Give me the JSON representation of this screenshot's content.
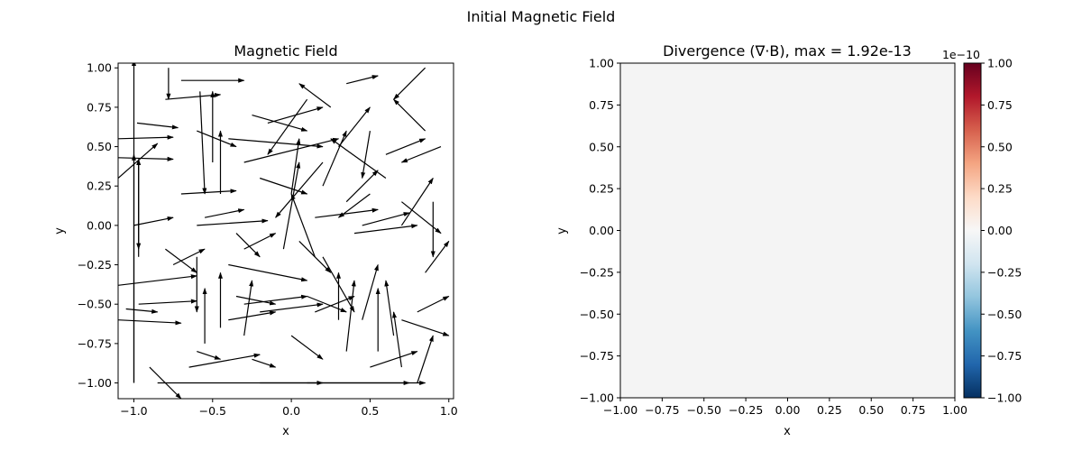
{
  "figure": {
    "suptitle": "Initial Magnetic Field"
  },
  "chart_data": [
    {
      "type": "quiver",
      "title": "Magnetic Field",
      "xlabel": "x",
      "ylabel": "y",
      "xlim": [
        -1.1,
        1.03
      ],
      "ylim": [
        -1.1,
        1.03
      ],
      "xticks": [
        "−1.0",
        "−0.5",
        "0.0",
        "0.5",
        "1.0"
      ],
      "yticks": [
        "−1.00",
        "−0.75",
        "−0.50",
        "−0.25",
        "0.00",
        "0.25",
        "0.50",
        "0.75",
        "1.00"
      ],
      "arrow_color": "#000000",
      "vectors": [
        [
          -1.0,
          -1.0,
          -1.0,
          1.05
        ],
        [
          -1.0,
          -1.0,
          -1.0,
          0.45
        ],
        [
          -0.97,
          0.4,
          -0.97,
          -0.15
        ],
        [
          -0.97,
          -0.2,
          -0.97,
          0.42
        ],
        [
          -0.98,
          0.65,
          -0.72,
          0.62
        ],
        [
          -1.1,
          0.55,
          -0.75,
          0.56
        ],
        [
          -1.1,
          0.43,
          -0.75,
          0.42
        ],
        [
          -1.1,
          0.3,
          -0.85,
          0.52
        ],
        [
          -0.97,
          -0.5,
          -0.6,
          -0.48
        ],
        [
          -1.1,
          -0.38,
          -0.6,
          -0.32
        ],
        [
          -1.1,
          -0.6,
          -0.7,
          -0.62
        ],
        [
          -1.05,
          -0.53,
          -0.85,
          -0.55
        ],
        [
          -0.85,
          -1.0,
          0.2,
          -1.0
        ],
        [
          -0.2,
          -1.0,
          0.85,
          -1.0
        ],
        [
          0.1,
          -1.0,
          0.75,
          -1.0
        ],
        [
          -0.6,
          -0.8,
          -0.45,
          -0.85
        ],
        [
          -0.65,
          -0.9,
          -0.2,
          -0.82
        ],
        [
          -0.25,
          -0.85,
          -0.1,
          -0.9
        ],
        [
          -0.8,
          0.8,
          -0.45,
          0.83
        ],
        [
          -0.7,
          0.92,
          -0.3,
          0.92
        ],
        [
          -0.78,
          1.0,
          -0.78,
          0.8
        ],
        [
          -0.5,
          0.4,
          -0.5,
          0.85
        ],
        [
          -0.45,
          0.2,
          -0.45,
          0.6
        ],
        [
          -0.58,
          0.85,
          -0.55,
          0.2
        ],
        [
          -0.7,
          0.2,
          -0.35,
          0.22
        ],
        [
          -0.6,
          0.0,
          -0.15,
          0.03
        ],
        [
          -0.55,
          0.05,
          -0.3,
          0.1
        ],
        [
          -0.4,
          0.55,
          0.2,
          0.5
        ],
        [
          -0.25,
          0.7,
          0.1,
          0.6
        ],
        [
          -0.3,
          0.4,
          0.3,
          0.55
        ],
        [
          -0.2,
          0.3,
          0.1,
          0.2
        ],
        [
          0.0,
          0.2,
          0.05,
          0.55
        ],
        [
          0.1,
          0.8,
          -0.15,
          0.45
        ],
        [
          0.3,
          0.5,
          0.5,
          0.75
        ],
        [
          0.35,
          0.15,
          0.55,
          0.35
        ],
        [
          0.6,
          0.3,
          0.25,
          0.55
        ],
        [
          0.2,
          0.4,
          -0.1,
          0.05
        ],
        [
          0.15,
          -0.2,
          0.0,
          0.2
        ],
        [
          -0.05,
          -0.15,
          0.05,
          0.4
        ],
        [
          0.45,
          0.0,
          0.75,
          0.08
        ],
        [
          0.4,
          -0.05,
          0.8,
          0.0
        ],
        [
          0.15,
          0.05,
          0.55,
          0.1
        ],
        [
          0.7,
          0.0,
          0.9,
          0.3
        ],
        [
          0.7,
          0.15,
          0.95,
          -0.05
        ],
        [
          0.5,
          0.2,
          0.3,
          0.05
        ],
        [
          0.85,
          0.6,
          0.65,
          0.8
        ],
        [
          0.85,
          1.0,
          0.65,
          0.8
        ],
        [
          0.6,
          0.45,
          0.85,
          0.55
        ],
        [
          -0.4,
          -0.25,
          0.1,
          -0.35
        ],
        [
          -0.3,
          -0.5,
          0.1,
          -0.45
        ],
        [
          -0.4,
          -0.6,
          -0.1,
          -0.55
        ],
        [
          -0.2,
          -0.55,
          0.2,
          -0.5
        ],
        [
          -0.35,
          -0.45,
          -0.1,
          -0.5
        ],
        [
          -0.45,
          -0.65,
          -0.45,
          -0.3
        ],
        [
          -0.3,
          -0.7,
          -0.25,
          -0.35
        ],
        [
          -0.55,
          -0.75,
          -0.55,
          -0.4
        ],
        [
          -0.6,
          -0.2,
          -0.6,
          -0.55
        ],
        [
          0.3,
          -0.6,
          0.3,
          -0.3
        ],
        [
          0.35,
          -0.8,
          0.4,
          -0.35
        ],
        [
          0.45,
          -0.6,
          0.55,
          -0.25
        ],
        [
          0.55,
          -0.8,
          0.55,
          -0.4
        ],
        [
          0.65,
          -0.7,
          0.6,
          -0.35
        ],
        [
          0.7,
          -0.9,
          0.65,
          -0.55
        ],
        [
          0.15,
          -0.55,
          0.4,
          -0.45
        ],
        [
          0.2,
          -0.2,
          0.4,
          -0.55
        ],
        [
          0.0,
          -0.7,
          0.2,
          -0.85
        ],
        [
          0.5,
          -0.9,
          0.8,
          -0.8
        ],
        [
          0.8,
          -1.0,
          0.9,
          -0.7
        ],
        [
          0.8,
          -0.55,
          1.0,
          -0.45
        ],
        [
          0.85,
          -0.3,
          1.0,
          -0.1
        ],
        [
          0.7,
          -0.6,
          1.0,
          -0.7
        ],
        [
          -0.8,
          -0.15,
          -0.6,
          -0.3
        ],
        [
          -0.75,
          -0.25,
          -0.55,
          -0.15
        ],
        [
          -0.35,
          -0.05,
          -0.2,
          -0.2
        ],
        [
          -0.3,
          -0.15,
          -0.1,
          -0.05
        ],
        [
          0.05,
          -0.1,
          0.25,
          -0.3
        ],
        [
          0.1,
          -0.45,
          0.35,
          -0.55
        ],
        [
          -1.0,
          0.0,
          -0.75,
          0.05
        ],
        [
          -0.6,
          0.6,
          -0.35,
          0.5
        ],
        [
          -0.15,
          0.65,
          0.2,
          0.75
        ],
        [
          0.35,
          0.9,
          0.55,
          0.95
        ],
        [
          0.25,
          0.75,
          0.05,
          0.9
        ],
        [
          0.9,
          0.15,
          0.9,
          -0.2
        ],
        [
          0.95,
          0.5,
          0.7,
          0.4
        ],
        [
          0.2,
          0.25,
          0.35,
          0.6
        ],
        [
          0.5,
          0.6,
          0.45,
          0.3
        ],
        [
          -0.9,
          -0.9,
          -0.7,
          -1.1
        ]
      ]
    },
    {
      "type": "heatmap",
      "title": "Divergence (∇·B), max = 1.92e-13",
      "xlabel": "x",
      "ylabel": "y",
      "xlim": [
        -1.0,
        1.0
      ],
      "ylim": [
        -1.0,
        1.0
      ],
      "xticks": [
        "−1.00",
        "−0.75",
        "−0.50",
        "−0.25",
        "0.00",
        "0.25",
        "0.50",
        "0.75",
        "1.00"
      ],
      "yticks": [
        "−1.00",
        "−0.75",
        "−0.50",
        "−0.25",
        "0.00",
        "0.25",
        "0.50",
        "0.75",
        "1.00"
      ],
      "fill_value": 0.0,
      "fill_color": "#f4f4f4",
      "colorbar": {
        "ticks": [
          "−1.00",
          "−0.75",
          "−0.50",
          "−0.25",
          "0.00",
          "0.25",
          "0.50",
          "0.75",
          "1.00"
        ],
        "multiplier": "1e−10",
        "range": [
          -1.0,
          1.0
        ],
        "colors": [
          "#053061",
          "#2166ac",
          "#4393c3",
          "#92c5de",
          "#d1e5f0",
          "#f7f7f7",
          "#fddbc7",
          "#f4a582",
          "#d6604d",
          "#b2182b",
          "#67001f"
        ]
      }
    }
  ]
}
